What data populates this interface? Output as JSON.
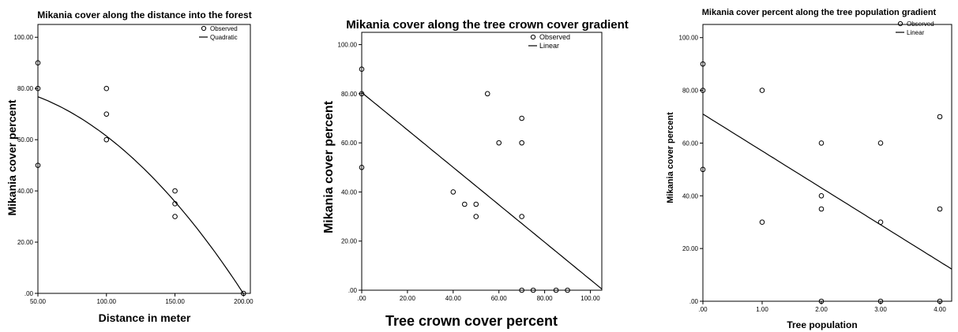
{
  "chart_data": [
    {
      "type": "scatter",
      "title": "Mikania cover along the distance into the forest",
      "xlabel": "Distance in meter",
      "ylabel": "Mikania cover percent",
      "xlim": [
        50,
        205
      ],
      "ylim": [
        0,
        105
      ],
      "xticks": [
        "50.00",
        "100.00",
        "150.00",
        "200.00"
      ],
      "xtick_values": [
        50,
        100,
        150,
        200
      ],
      "yticks": [
        ".00",
        "20.00",
        "40.00",
        "60.00",
        "80.00",
        "100.00"
      ],
      "ytick_values": [
        0,
        20,
        40,
        60,
        80,
        100
      ],
      "legend": {
        "observed": "Observed",
        "fit": "Quadratic"
      },
      "points": [
        [
          50,
          90
        ],
        [
          50,
          80
        ],
        [
          50,
          50
        ],
        [
          100,
          80
        ],
        [
          100,
          70
        ],
        [
          100,
          60
        ],
        [
          150,
          40
        ],
        [
          150,
          35
        ],
        [
          150,
          30
        ],
        [
          200,
          0
        ]
      ],
      "fit": {
        "model": "quadratic",
        "coefficients": [
          81.9,
          0.0,
          -0.00205
        ]
      }
    },
    {
      "type": "scatter",
      "title": "Mikania cover along the tree crown cover gradient",
      "xlabel": "Tree crown cover percent",
      "ylabel": "Mikania cover percent",
      "xlim": [
        0,
        105
      ],
      "ylim": [
        0,
        105
      ],
      "xticks": [
        ".00",
        "20.00",
        "40.00",
        "60.00",
        "80.00",
        "100.00"
      ],
      "xtick_values": [
        0,
        20,
        40,
        60,
        80,
        100
      ],
      "yticks": [
        ".00",
        "20.00",
        "40.00",
        "60.00",
        "80.00",
        "100.00"
      ],
      "ytick_values": [
        0,
        20,
        40,
        60,
        80,
        100
      ],
      "legend": {
        "observed": "Observed",
        "fit": "Linear"
      },
      "points": [
        [
          0,
          90
        ],
        [
          0,
          80
        ],
        [
          0,
          50
        ],
        [
          40,
          40
        ],
        [
          45,
          35
        ],
        [
          50,
          35
        ],
        [
          50,
          30
        ],
        [
          55,
          80
        ],
        [
          60,
          60
        ],
        [
          70,
          70
        ],
        [
          70,
          60
        ],
        [
          70,
          30
        ],
        [
          70,
          0
        ],
        [
          75,
          0
        ],
        [
          85,
          0
        ],
        [
          90,
          0
        ]
      ],
      "fit": {
        "model": "linear",
        "intercept": 80.5,
        "slope": -0.762
      }
    },
    {
      "type": "scatter",
      "title": "Mikania cover percent along the tree population gradient",
      "xlabel": "Tree population",
      "ylabel": "Mikania cover percent",
      "xlim": [
        0,
        4.2
      ],
      "ylim": [
        0,
        105
      ],
      "xticks": [
        ".00",
        "1.00",
        "2.00",
        "3.00",
        "4.00"
      ],
      "xtick_values": [
        0,
        1,
        2,
        3,
        4
      ],
      "yticks": [
        ".00",
        "20.00",
        "40.00",
        "60.00",
        "80.00",
        "100.00"
      ],
      "ytick_values": [
        0,
        20,
        40,
        60,
        80,
        100
      ],
      "legend": {
        "observed": "Observed",
        "fit": "Linear"
      },
      "points": [
        [
          0,
          90
        ],
        [
          0,
          80
        ],
        [
          0,
          50
        ],
        [
          1,
          80
        ],
        [
          1,
          30
        ],
        [
          2,
          60
        ],
        [
          2,
          40
        ],
        [
          2,
          35
        ],
        [
          2,
          0
        ],
        [
          3,
          60
        ],
        [
          3,
          30
        ],
        [
          3,
          0
        ],
        [
          4,
          70
        ],
        [
          4,
          35
        ],
        [
          4,
          0
        ]
      ],
      "fit": {
        "model": "linear",
        "intercept": 71,
        "slope": -14.0
      }
    }
  ]
}
